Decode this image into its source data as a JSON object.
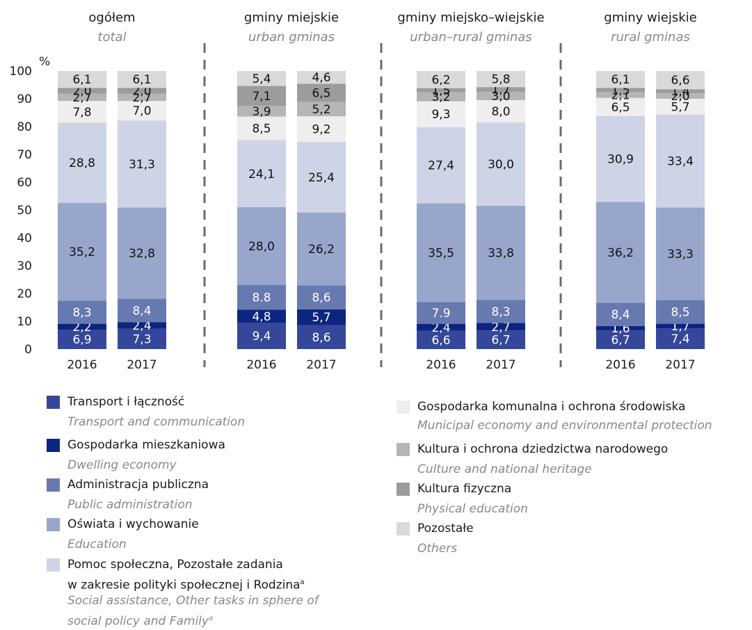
{
  "chart_data": {
    "type": "bar",
    "stacked": true,
    "ylabel": "%",
    "ylim": [
      0,
      100
    ],
    "yticks": [
      "0",
      "10",
      "20",
      "30",
      "40",
      "50",
      "60",
      "70",
      "80",
      "90",
      "100"
    ],
    "colors": {
      "transport": "#35479a",
      "dwelling": "#0b2580",
      "admin": "#6879b0",
      "education": "#98a6cc",
      "social": "#ced4e6",
      "municipal": "#eeeeee",
      "culture": "#b5b5b5",
      "physical": "#9c9c9c",
      "others": "#d9d9d9"
    },
    "groups": [
      {
        "title_pl": "ogółem",
        "title_en": "total",
        "bars": [
          {
            "year": "2016",
            "values": [
              6.9,
              2.2,
              8.3,
              35.2,
              28.8,
              7.8,
              2.7,
              2.0,
              6.1
            ],
            "labels": [
              "6,9",
              "2,2",
              "8,3",
              "35,2",
              "28,8",
              "7,8",
              "2,7",
              "2,0",
              "6,1"
            ]
          },
          {
            "year": "2017",
            "values": [
              7.3,
              2.4,
              8.4,
              32.8,
              31.3,
              7.0,
              2.7,
              2.0,
              6.1
            ],
            "labels": [
              "7,3",
              "2,4",
              "8,4",
              "32,8",
              "31,3",
              "7,0",
              "2,7",
              "2,0",
              "6,1"
            ]
          }
        ]
      },
      {
        "title_pl": "gminy miejskie",
        "title_en": "urban gminas",
        "bars": [
          {
            "year": "2016",
            "values": [
              9.4,
              4.8,
              8.8,
              28.0,
              24.1,
              8.5,
              3.9,
              7.1,
              5.4
            ],
            "labels": [
              "9,4",
              "4,8",
              "8.8",
              "28,0",
              "24,1",
              "8,5",
              "3,9",
              "7,1",
              "5,4"
            ]
          },
          {
            "year": "2017",
            "values": [
              8.6,
              5.7,
              8.6,
              26.2,
              25.4,
              9.2,
              5.2,
              6.5,
              4.6
            ],
            "labels": [
              "8,6",
              "5,7",
              "8,6",
              "26,2",
              "25,4",
              "9,2",
              "5,2",
              "6,5",
              "4,6"
            ]
          }
        ]
      },
      {
        "title_pl": "gminy miejsko–wiejskie",
        "title_en": "urban–rural gminas",
        "bars": [
          {
            "year": "2016",
            "values": [
              6.6,
              2.4,
              7.9,
              35.5,
              27.4,
              9.3,
              3.2,
              1.5,
              6.2
            ],
            "labels": [
              "6,6",
              "2,4",
              "7.9",
              "35,5",
              "27,4",
              "9,3",
              "3,2",
              "1,5",
              "6,2"
            ]
          },
          {
            "year": "2017",
            "values": [
              6.7,
              2.7,
              8.3,
              33.8,
              30.0,
              8.0,
              3.0,
              1.7,
              5.8
            ],
            "labels": [
              "6,7",
              "2,7",
              "8,3",
              "33,8",
              "30,0",
              "8,0",
              "3,0",
              "1,7",
              "5,8"
            ]
          }
        ]
      },
      {
        "title_pl": "gminy wiejskie",
        "title_en": "rural gminas",
        "bars": [
          {
            "year": "2016",
            "values": [
              6.7,
              1.6,
              8.4,
              36.2,
              30.9,
              6.5,
              2.1,
              1.5,
              6.1
            ],
            "labels": [
              "6,7",
              "1,6",
              "8,4",
              "36,2",
              "30,9",
              "6,5",
              "2,1",
              "1,5",
              "6,1"
            ]
          },
          {
            "year": "2017",
            "values": [
              7.4,
              1.7,
              8.5,
              33.3,
              33.4,
              5.7,
              2.0,
              1.4,
              6.6
            ],
            "labels": [
              "7,4",
              "1,7",
              "8,5",
              "33,3",
              "33,4",
              "5,7",
              "2,0",
              "1,4",
              "6,6"
            ]
          }
        ]
      }
    ],
    "series": [
      {
        "key": "transport",
        "name_pl": "Transport i łączność",
        "name_en": "Transport and communication"
      },
      {
        "key": "dwelling",
        "name_pl": "Gospodarka mieszkaniowa",
        "name_en": "Dwelling economy"
      },
      {
        "key": "admin",
        "name_pl": "Administracja publiczna",
        "name_en": "Public administration"
      },
      {
        "key": "education",
        "name_pl": "Oświata i wychowanie",
        "name_en": "Education"
      },
      {
        "key": "social",
        "name_pl_line1": "Pomoc społeczna, Pozostałe zadania",
        "name_pl_line2": "w zakresie polityki społecznej i Rodzina",
        "name_en_line1": "Social assistance, Other tasks in sphere of",
        "name_en_line2": "social policy and Family",
        "footnote": "a"
      },
      {
        "key": "municipal",
        "name_pl": "Gospodarka komunalna i ochrona środowiska",
        "name_en": "Municipal economy and environmental protection"
      },
      {
        "key": "culture",
        "name_pl": "Kultura i ochrona dziedzictwa narodowego",
        "name_en": "Culture and national heritage"
      },
      {
        "key": "physical",
        "name_pl": "Kultura fizyczna",
        "name_en": "Physical education"
      },
      {
        "key": "others",
        "name_pl": "Pozostałe",
        "name_en": "Others"
      }
    ]
  }
}
